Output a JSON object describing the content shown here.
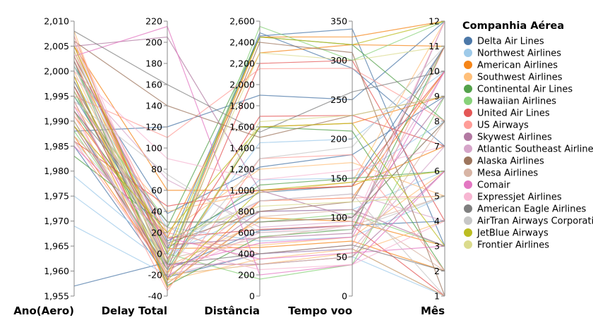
{
  "chart_data": {
    "type": "parallel_coordinates",
    "dimensions": [
      {
        "key": "year",
        "label": "Ano(Aero)",
        "domain": [
          1955,
          2010
        ],
        "ticks": [
          "1,955",
          "1,960",
          "1,965",
          "1,970",
          "1,975",
          "1,980",
          "1,985",
          "1,990",
          "1,995",
          "2,000",
          "2,005",
          "2,010"
        ],
        "tick_values": [
          1955,
          1960,
          1965,
          1970,
          1975,
          1980,
          1985,
          1990,
          1995,
          2000,
          2005,
          2010
        ]
      },
      {
        "key": "delay",
        "label": "Delay Total",
        "domain": [
          -40,
          220
        ],
        "ticks": [
          "-40",
          "-20",
          "0",
          "20",
          "40",
          "60",
          "80",
          "100",
          "120",
          "140",
          "160",
          "180",
          "200",
          "220"
        ],
        "tick_values": [
          -40,
          -20,
          0,
          20,
          40,
          60,
          80,
          100,
          120,
          140,
          160,
          180,
          200,
          220
        ]
      },
      {
        "key": "distance",
        "label": "Distância",
        "domain": [
          0,
          2600
        ],
        "ticks": [
          "0",
          "200",
          "400",
          "600",
          "800",
          "1,000",
          "1,200",
          "1,400",
          "1,600",
          "1,800",
          "2,000",
          "2,200",
          "2,400",
          "2,600"
        ],
        "tick_values": [
          0,
          200,
          400,
          600,
          800,
          1000,
          1200,
          1400,
          1600,
          1800,
          2000,
          2200,
          2400,
          2600
        ]
      },
      {
        "key": "airtime",
        "label": "Tempo voo",
        "domain": [
          0,
          350
        ],
        "ticks": [
          "0",
          "50",
          "100",
          "150",
          "200",
          "250",
          "300",
          "350"
        ],
        "tick_values": [
          0,
          50,
          100,
          150,
          200,
          250,
          300,
          350
        ]
      },
      {
        "key": "month",
        "label": "Mês",
        "domain": [
          1,
          12
        ],
        "ticks": [
          "1",
          "2",
          "3",
          "4",
          "5",
          "6",
          "7",
          "8",
          "9",
          "10",
          "11",
          "12"
        ],
        "tick_values": [
          1,
          2,
          3,
          4,
          5,
          6,
          7,
          8,
          9,
          10,
          11,
          12
        ]
      }
    ],
    "legend": {
      "title": "Companhia Aérea",
      "placement": "right",
      "items": [
        {
          "name": "Delta Air Lines",
          "color": "#4c78a8"
        },
        {
          "name": "Northwest Airlines",
          "color": "#9ecae9"
        },
        {
          "name": "American Airlines",
          "color": "#f58518"
        },
        {
          "name": "Southwest Airlines",
          "color": "#ffbf79"
        },
        {
          "name": "Continental Air Lines",
          "color": "#54a24b"
        },
        {
          "name": "Hawaiian Airlines",
          "color": "#88d27a"
        },
        {
          "name": "United Air Lines",
          "color": "#e45756"
        },
        {
          "name": "US Airways",
          "color": "#ff9d98"
        },
        {
          "name": "Skywest Airlines",
          "color": "#b279a2"
        },
        {
          "name": "Atlantic Southeast Airlines",
          "color": "#d6a5c9"
        },
        {
          "name": "Alaska Airlines",
          "color": "#9d755d"
        },
        {
          "name": "Mesa Airlines",
          "color": "#d8b5a5"
        },
        {
          "name": "Comair",
          "color": "#e377c2"
        },
        {
          "name": "Expressjet Airlines",
          "color": "#f7b6d2"
        },
        {
          "name": "American Eagle Airlines",
          "color": "#7f7f7f"
        },
        {
          "name": "AirTran Airways Corporation",
          "color": "#c7c7c7"
        },
        {
          "name": "JetBlue Airways",
          "color": "#bcbd22"
        },
        {
          "name": "Frontier Airlines",
          "color": "#dbdb8d"
        }
      ]
    },
    "records": [
      {
        "airline": "Delta Air Lines",
        "values": [
          1957,
          -8,
          2490,
          290,
          7
        ]
      },
      {
        "airline": "Delta Air Lines",
        "values": [
          1988,
          120,
          1900,
          250,
          12
        ]
      },
      {
        "airline": "Delta Air Lines",
        "values": [
          1995,
          5,
          2460,
          340,
          3
        ]
      },
      {
        "airline": "Delta Air Lines",
        "values": [
          2001,
          38,
          1220,
          180,
          9
        ]
      },
      {
        "airline": "Delta Air Lines",
        "values": [
          1990,
          -15,
          620,
          90,
          4
        ]
      },
      {
        "airline": "Delta Air Lines",
        "values": [
          2003,
          12,
          980,
          140,
          11
        ]
      },
      {
        "airline": "Delta Air Lines",
        "values": [
          1985,
          -22,
          400,
          60,
          1
        ]
      },
      {
        "airline": "Northwest Airlines",
        "values": [
          1969,
          -20,
          300,
          50,
          1
        ]
      },
      {
        "airline": "Northwest Airlines",
        "values": [
          1979,
          0,
          800,
          110,
          6
        ]
      },
      {
        "airline": "Northwest Airlines",
        "values": [
          1975,
          -10,
          1450,
          200,
          10
        ]
      },
      {
        "airline": "Northwest Airlines",
        "values": [
          1998,
          25,
          520,
          75,
          5
        ]
      },
      {
        "airline": "Northwest Airlines",
        "values": [
          2004,
          -5,
          1100,
          150,
          8
        ]
      },
      {
        "airline": "American Airlines",
        "values": [
          2007,
          -10,
          2450,
          330,
          12
        ]
      },
      {
        "airline": "American Airlines",
        "values": [
          1991,
          15,
          2300,
          320,
          11
        ]
      },
      {
        "airline": "American Airlines",
        "values": [
          1994,
          -28,
          740,
          95,
          3
        ]
      },
      {
        "airline": "American Airlines",
        "values": [
          2005,
          60,
          1000,
          140,
          7
        ]
      },
      {
        "airline": "American Airlines",
        "values": [
          1987,
          -18,
          1600,
          220,
          9
        ]
      },
      {
        "airline": "American Airlines",
        "values": [
          2002,
          5,
          460,
          70,
          2
        ]
      },
      {
        "airline": "American Airlines",
        "values": [
          1999,
          -32,
          900,
          125,
          10
        ]
      },
      {
        "airline": "Southwest Airlines",
        "values": [
          2006,
          -20,
          300,
          55,
          4
        ]
      },
      {
        "airline": "Southwest Airlines",
        "values": [
          1996,
          10,
          480,
          75,
          6
        ]
      },
      {
        "airline": "Southwest Airlines",
        "values": [
          2000,
          -12,
          700,
          100,
          8
        ]
      },
      {
        "airline": "Southwest Airlines",
        "values": [
          1993,
          40,
          980,
          145,
          12
        ]
      },
      {
        "airline": "Southwest Airlines",
        "values": [
          2008,
          -25,
          350,
          60,
          1
        ]
      },
      {
        "airline": "Southwest Airlines",
        "values": [
          1989,
          20,
          1200,
          170,
          5
        ]
      },
      {
        "airline": "Continental Air Lines",
        "values": [
          1996,
          -15,
          1600,
          210,
          2
        ]
      },
      {
        "airline": "Continental Air Lines",
        "values": [
          1983,
          25,
          2450,
          320,
          8
        ]
      },
      {
        "airline": "Continental Air Lines",
        "values": [
          2002,
          -30,
          560,
          85,
          11
        ]
      },
      {
        "airline": "Continental Air Lines",
        "values": [
          1992,
          5,
          1050,
          150,
          6
        ]
      },
      {
        "airline": "Hawaiian Airlines",
        "values": [
          1988,
          -10,
          2550,
          300,
          12
        ]
      },
      {
        "airline": "Hawaiian Airlines",
        "values": [
          2001,
          0,
          160,
          40,
          9
        ]
      },
      {
        "airline": "Hawaiian Airlines",
        "values": [
          1995,
          30,
          700,
          105,
          3
        ]
      },
      {
        "airline": "United Air Lines",
        "values": [
          2005,
          -5,
          1700,
          230,
          7
        ]
      },
      {
        "airline": "United Air Lines",
        "values": [
          1986,
          45,
          1000,
          140,
          10
        ]
      },
      {
        "airline": "United Air Lines",
        "values": [
          1997,
          -25,
          2200,
          300,
          4
        ]
      },
      {
        "airline": "United Air Lines",
        "values": [
          2003,
          15,
          630,
          90,
          1
        ]
      },
      {
        "airline": "US Airways",
        "values": [
          1995,
          110,
          2150,
          290,
          8
        ]
      },
      {
        "airline": "US Airways",
        "values": [
          1986,
          -18,
          900,
          125,
          5
        ]
      },
      {
        "airline": "US Airways",
        "values": [
          2004,
          20,
          400,
          65,
          11
        ]
      },
      {
        "airline": "US Airways",
        "values": [
          1992,
          -35,
          1300,
          180,
          2
        ]
      },
      {
        "airline": "Skywest Airlines",
        "values": [
          2005,
          205,
          1000,
          100,
          9
        ]
      },
      {
        "airline": "Skywest Airlines",
        "values": [
          2002,
          -10,
          300,
          50,
          6
        ]
      },
      {
        "airline": "Skywest Airlines",
        "values": [
          1996,
          8,
          550,
          80,
          12
        ]
      },
      {
        "airline": "Skywest Airlines",
        "values": [
          1990,
          -22,
          800,
          110,
          3
        ]
      },
      {
        "airline": "Atlantic Southeast Airlines",
        "values": [
          1999,
          70,
          650,
          95,
          10
        ]
      },
      {
        "airline": "Atlantic Southeast Airlines",
        "values": [
          1994,
          -20,
          400,
          60,
          7
        ]
      },
      {
        "airline": "Atlantic Southeast Airlines",
        "values": [
          2006,
          2,
          900,
          130,
          4
        ]
      },
      {
        "airline": "Alaska Airlines",
        "values": [
          2006,
          140,
          1500,
          230,
          9
        ]
      },
      {
        "airline": "Alaska Airlines",
        "values": [
          1989,
          -15,
          2400,
          310,
          1
        ]
      },
      {
        "airline": "Alaska Airlines",
        "values": [
          1997,
          10,
          800,
          120,
          11
        ]
      },
      {
        "airline": "Mesa Airlines",
        "values": [
          1998,
          -5,
          550,
          90,
          5
        ]
      },
      {
        "airline": "Mesa Airlines",
        "values": [
          1987,
          25,
          300,
          50,
          8
        ]
      },
      {
        "airline": "Mesa Airlines",
        "values": [
          2003,
          -28,
          750,
          110,
          2
        ]
      },
      {
        "airline": "Comair",
        "values": [
          2003,
          215,
          200,
          40,
          6
        ]
      },
      {
        "airline": "Comair",
        "values": [
          1993,
          -12,
          500,
          75,
          10
        ]
      },
      {
        "airline": "Comair",
        "values": [
          1985,
          15,
          350,
          55,
          3
        ]
      },
      {
        "airline": "Expressjet Airlines",
        "values": [
          2000,
          90,
          1100,
          160,
          7
        ]
      },
      {
        "airline": "Expressjet Airlines",
        "values": [
          1991,
          -20,
          600,
          90,
          12
        ]
      },
      {
        "airline": "Expressjet Airlines",
        "values": [
          2007,
          5,
          250,
          40,
          4
        ]
      },
      {
        "airline": "American Eagle Airlines",
        "values": [
          2008,
          160,
          1550,
          260,
          10
        ]
      },
      {
        "airline": "American Eagle Airlines",
        "values": [
          1998,
          -10,
          400,
          65,
          2
        ]
      },
      {
        "airline": "American Eagle Airlines",
        "values": [
          1992,
          30,
          700,
          100,
          8
        ]
      },
      {
        "airline": "AirTran Airways Corporation",
        "values": [
          1994,
          75,
          600,
          85,
          5
        ]
      },
      {
        "airline": "AirTran Airways Corporation",
        "values": [
          2001,
          -15,
          1300,
          190,
          11
        ]
      },
      {
        "airline": "AirTran Airways Corporation",
        "values": [
          1986,
          10,
          900,
          130,
          1
        ]
      },
      {
        "airline": "JetBlue Airways",
        "values": [
          2005,
          0,
          2450,
          320,
          12
        ]
      },
      {
        "airline": "JetBlue Airways",
        "values": [
          1999,
          -25,
          1000,
          145,
          6
        ]
      },
      {
        "airline": "JetBlue Airways",
        "values": [
          1989,
          20,
          1600,
          220,
          3
        ]
      },
      {
        "airline": "Frontier Airlines",
        "values": [
          2004,
          -20,
          1650,
          230,
          9
        ]
      },
      {
        "airline": "Frontier Airlines",
        "values": [
          1996,
          15,
          850,
          120,
          5
        ]
      },
      {
        "airline": "Frontier Airlines",
        "values": [
          1990,
          -8,
          2300,
          300,
          11
        ]
      }
    ]
  }
}
